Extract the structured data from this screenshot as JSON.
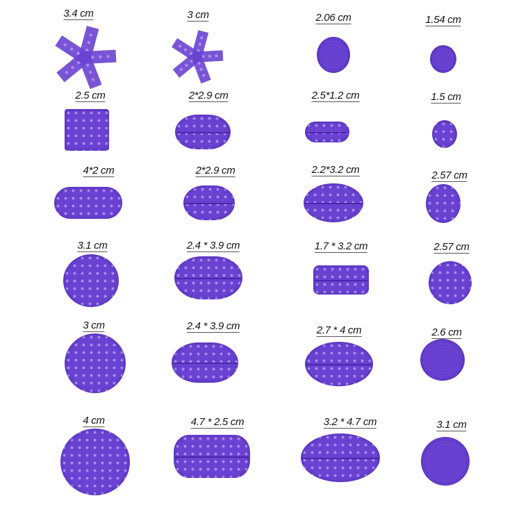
{
  "accent_color": "#6a42d2",
  "pads": [
    {
      "label": "3.4 cm",
      "shape": "star-5-arm"
    },
    {
      "label": "3 cm",
      "shape": "star-5-arm"
    },
    {
      "label": "2.06 cm",
      "shape": "round-rings"
    },
    {
      "label": "1.54 cm",
      "shape": "round-rings"
    },
    {
      "label": "2.5 cm",
      "shape": "square-dotted"
    },
    {
      "label": "2*2.9 cm",
      "shape": "oval-grooved"
    },
    {
      "label": "2.5*1.2 cm",
      "shape": "pill-grooved"
    },
    {
      "label": "1.5 cm",
      "shape": "round-dotted"
    },
    {
      "label": "4*2 cm",
      "shape": "pill-dotted"
    },
    {
      "label": "2*2.9 cm",
      "shape": "oval-grooved"
    },
    {
      "label": "2.2*3.2 cm",
      "shape": "oval-grooved"
    },
    {
      "label": "2.57 cm",
      "shape": "round-dotted"
    },
    {
      "label": "3.1 cm",
      "shape": "round-dotted"
    },
    {
      "label": "2.4 * 3.9 cm",
      "shape": "oval-grooved"
    },
    {
      "label": "1.7 * 3.2 cm",
      "shape": "rect-grooved"
    },
    {
      "label": "2.57 cm",
      "shape": "round-dotted"
    },
    {
      "label": "3 cm",
      "shape": "round-dotted"
    },
    {
      "label": "2.4 * 3.9 cm",
      "shape": "oval-grooved"
    },
    {
      "label": "2.7 * 4 cm",
      "shape": "oval-grooved"
    },
    {
      "label": "2.6 cm",
      "shape": "round-rings"
    },
    {
      "label": "4 cm",
      "shape": "round-dotted"
    },
    {
      "label": "4.7 * 2.5 cm",
      "shape": "rect-grooved"
    },
    {
      "label": "3.2 * 4.7 cm",
      "shape": "oval-grooved"
    },
    {
      "label": "3.1 cm",
      "shape": "round-rings"
    }
  ]
}
